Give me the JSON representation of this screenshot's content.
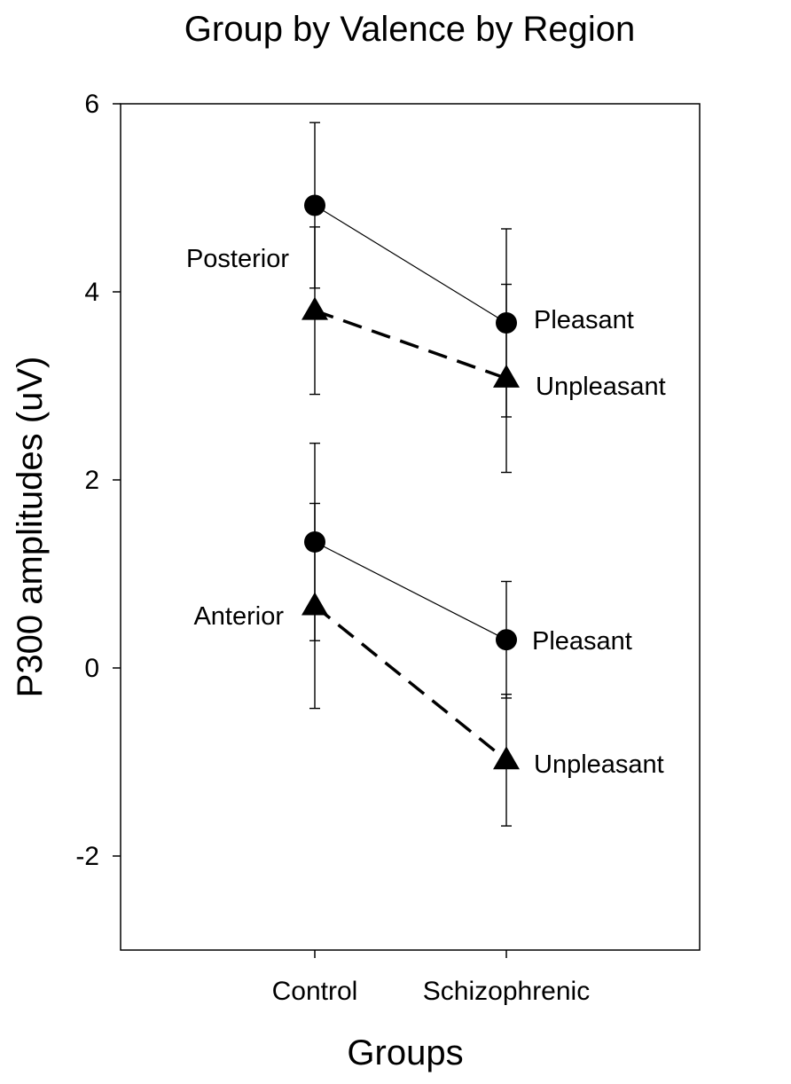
{
  "chart_data": {
    "type": "line",
    "title": "Group by Valence by Region",
    "xlabel": "Groups",
    "ylabel": "P300 amplitudes (uV)",
    "categories": [
      "Control",
      "Schizophrenic"
    ],
    "ylim": [
      -3,
      6
    ],
    "yticks": [
      -2,
      0,
      2,
      4,
      6
    ],
    "grid": false,
    "series": [
      {
        "region": "Posterior",
        "valence": "Pleasant",
        "marker": "circle",
        "line": "solid",
        "values": [
          4.92,
          3.67
        ],
        "errors": [
          0.88,
          1.0
        ]
      },
      {
        "region": "Posterior",
        "valence": "Unpleasant",
        "marker": "triangle",
        "line": "dashed",
        "values": [
          3.8,
          3.08
        ],
        "errors": [
          0.89,
          1.0
        ]
      },
      {
        "region": "Anterior",
        "valence": "Pleasant",
        "marker": "circle",
        "line": "solid",
        "values": [
          1.34,
          0.3
        ],
        "errors": [
          1.05,
          0.62
        ]
      },
      {
        "region": "Anterior",
        "valence": "Unpleasant",
        "marker": "triangle",
        "line": "dashed",
        "values": [
          0.66,
          -0.98
        ],
        "errors": [
          1.09,
          0.7
        ]
      }
    ],
    "annotations": {
      "posterior": "Posterior",
      "anterior": "Anterior",
      "posterior_pleasant": "Pleasant",
      "posterior_unpleasant": "Unpleasant",
      "anterior_pleasant": "Pleasant",
      "anterior_unpleasant": "Unpleasant"
    }
  }
}
